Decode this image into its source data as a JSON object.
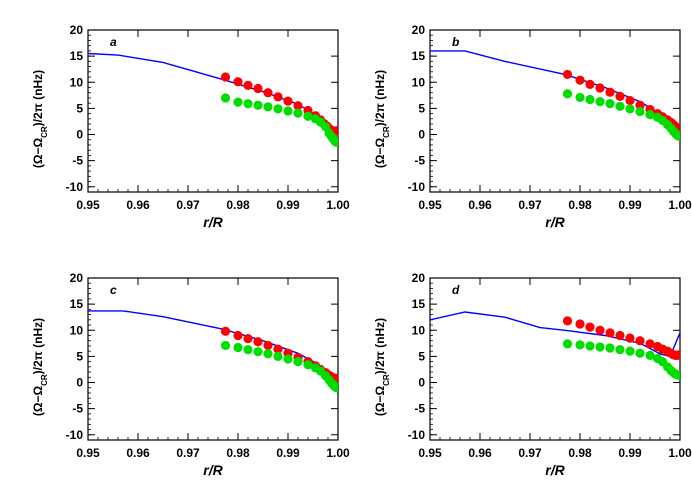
{
  "chart_data": [
    {
      "type": "scatter",
      "panel_label": "a",
      "xlabel": "r/R",
      "ylabel_parts": [
        "(Ω−Ω",
        "CR",
        ")/2π  (nHz)"
      ],
      "xlim": [
        0.95,
        1.0
      ],
      "ylim": [
        -11,
        20
      ],
      "xticks": [
        0.95,
        0.96,
        0.97,
        0.98,
        0.99,
        1.0
      ],
      "xtick_labels": [
        "0.95",
        "0.96",
        "0.97",
        "0.98",
        "0.99",
        "1.00"
      ],
      "yticks": [
        -10,
        -5,
        0,
        5,
        10,
        15,
        20
      ],
      "ytick_labels": [
        "-10",
        "-5",
        "0",
        "5",
        "10",
        "15",
        "20"
      ],
      "series": [
        {
          "name": "model",
          "kind": "line",
          "color": "#0000ff",
          "x": [
            0.95,
            0.956,
            0.965,
            0.977,
            0.985,
            0.992,
            0.996,
            0.998,
            0.9995
          ],
          "y": [
            15.5,
            15.2,
            13.8,
            10.5,
            8.2,
            5.8,
            3.5,
            1.8,
            0.6
          ]
        },
        {
          "name": "red data",
          "kind": "scatter",
          "color": "#ff0000",
          "x": [
            0.9775,
            0.98,
            0.982,
            0.984,
            0.986,
            0.988,
            0.99,
            0.992,
            0.994,
            0.9955,
            0.9965,
            0.9972,
            0.9978,
            0.9983,
            0.9987,
            0.9991,
            0.9994,
            0.9997
          ],
          "y": [
            11.0,
            10.1,
            9.4,
            8.8,
            8.0,
            7.2,
            6.4,
            5.5,
            4.6,
            3.6,
            2.8,
            2.1,
            1.6,
            1.1,
            0.8,
            0.6,
            0.6,
            0.7
          ]
        },
        {
          "name": "green data",
          "kind": "scatter",
          "color": "#00dd00",
          "x": [
            0.9775,
            0.98,
            0.982,
            0.984,
            0.986,
            0.988,
            0.99,
            0.992,
            0.994,
            0.9955,
            0.9965,
            0.9975,
            0.9982,
            0.9987,
            0.9991,
            0.9994,
            0.9997
          ],
          "y": [
            7.0,
            6.2,
            5.9,
            5.6,
            5.3,
            4.9,
            4.5,
            4.1,
            3.5,
            3.0,
            2.4,
            1.5,
            0.3,
            -0.4,
            -0.9,
            -1.3,
            -1.5
          ]
        }
      ]
    },
    {
      "type": "scatter",
      "panel_label": "b",
      "xlabel": "r/R",
      "ylabel_parts": [
        "(Ω−Ω",
        "CR",
        ")/2π  (nHz)"
      ],
      "xlim": [
        0.95,
        1.0
      ],
      "ylim": [
        -11,
        20
      ],
      "xticks": [
        0.95,
        0.96,
        0.97,
        0.98,
        0.99,
        1.0
      ],
      "xtick_labels": [
        "0.95",
        "0.96",
        "0.97",
        "0.98",
        "0.99",
        "1.00"
      ],
      "yticks": [
        -10,
        -5,
        0,
        5,
        10,
        15,
        20
      ],
      "ytick_labels": [
        "-10",
        "-5",
        "0",
        "5",
        "10",
        "15",
        "20"
      ],
      "series": [
        {
          "name": "model",
          "kind": "line",
          "color": "#0000ff",
          "x": [
            0.95,
            0.957,
            0.965,
            0.977,
            0.985,
            0.992,
            0.996,
            0.998,
            0.9995
          ],
          "y": [
            16.0,
            16.0,
            14.0,
            11.5,
            9.0,
            6.3,
            4.0,
            2.2,
            1.0
          ]
        },
        {
          "name": "red data",
          "kind": "scatter",
          "color": "#ff0000",
          "x": [
            0.9775,
            0.98,
            0.982,
            0.984,
            0.986,
            0.988,
            0.99,
            0.992,
            0.994,
            0.9955,
            0.9965,
            0.9975,
            0.9982,
            0.9987,
            0.9991,
            0.9994,
            0.9997
          ],
          "y": [
            11.5,
            10.4,
            9.6,
            8.9,
            8.1,
            7.3,
            6.5,
            5.6,
            4.8,
            4.0,
            3.4,
            2.8,
            2.3,
            1.9,
            1.5,
            1.2,
            1.0
          ]
        },
        {
          "name": "green data",
          "kind": "scatter",
          "color": "#00dd00",
          "x": [
            0.9775,
            0.98,
            0.982,
            0.984,
            0.986,
            0.988,
            0.99,
            0.992,
            0.994,
            0.9955,
            0.9965,
            0.9975,
            0.9982,
            0.9987,
            0.9991,
            0.9994,
            0.9997
          ],
          "y": [
            7.8,
            7.1,
            6.7,
            6.3,
            5.9,
            5.4,
            4.9,
            4.4,
            3.8,
            3.3,
            2.7,
            1.9,
            1.2,
            0.6,
            0.2,
            -0.1,
            -0.3
          ]
        }
      ]
    },
    {
      "type": "scatter",
      "panel_label": "c",
      "xlabel": "r/R",
      "ylabel_parts": [
        "(Ω−Ω",
        "CR",
        ")/2π  (nHz)"
      ],
      "xlim": [
        0.95,
        1.0
      ],
      "ylim": [
        -11,
        20
      ],
      "xticks": [
        0.95,
        0.96,
        0.97,
        0.98,
        0.99,
        1.0
      ],
      "xtick_labels": [
        "0.95",
        "0.96",
        "0.97",
        "0.98",
        "0.99",
        "1.00"
      ],
      "yticks": [
        -10,
        -5,
        0,
        5,
        10,
        15,
        20
      ],
      "ytick_labels": [
        "-10",
        "-5",
        "0",
        "5",
        "10",
        "15",
        "20"
      ],
      "series": [
        {
          "name": "model",
          "kind": "line",
          "color": "#0000ff",
          "x": [
            0.95,
            0.957,
            0.965,
            0.977,
            0.985,
            0.992,
            0.996,
            0.998,
            0.9995
          ],
          "y": [
            13.7,
            13.7,
            12.6,
            10.2,
            8.0,
            5.6,
            3.5,
            2.0,
            0.8
          ]
        },
        {
          "name": "red data",
          "kind": "scatter",
          "color": "#ff0000",
          "x": [
            0.9775,
            0.98,
            0.982,
            0.984,
            0.986,
            0.988,
            0.99,
            0.992,
            0.994,
            0.9955,
            0.9965,
            0.9975,
            0.9982,
            0.9987,
            0.9991,
            0.9994,
            0.9997
          ],
          "y": [
            9.8,
            9.0,
            8.4,
            7.8,
            7.1,
            6.4,
            5.6,
            4.8,
            4.0,
            3.2,
            2.5,
            1.9,
            1.4,
            1.1,
            0.9,
            0.8,
            0.8
          ]
        },
        {
          "name": "green data",
          "kind": "scatter",
          "color": "#00dd00",
          "x": [
            0.9775,
            0.98,
            0.982,
            0.984,
            0.986,
            0.988,
            0.99,
            0.992,
            0.994,
            0.9955,
            0.9965,
            0.9975,
            0.9982,
            0.9987,
            0.9991,
            0.9994,
            0.9997
          ],
          "y": [
            7.1,
            6.7,
            6.3,
            5.9,
            5.5,
            5.0,
            4.5,
            4.0,
            3.4,
            2.8,
            2.2,
            1.3,
            0.5,
            -0.1,
            -0.5,
            -0.8,
            -1.0
          ]
        }
      ]
    },
    {
      "type": "scatter",
      "panel_label": "d",
      "xlabel": "r/R",
      "ylabel_parts": [
        "(Ω−Ω",
        "CR",
        ")/2π  (nHz)"
      ],
      "xlim": [
        0.95,
        1.0
      ],
      "ylim": [
        -11,
        20
      ],
      "xticks": [
        0.95,
        0.96,
        0.97,
        0.98,
        0.99,
        1.0
      ],
      "xtick_labels": [
        "0.95",
        "0.96",
        "0.97",
        "0.98",
        "0.99",
        "1.00"
      ],
      "yticks": [
        -10,
        -5,
        0,
        5,
        10,
        15,
        20
      ],
      "ytick_labels": [
        "-10",
        "-5",
        "0",
        "5",
        "10",
        "15",
        "20"
      ],
      "series": [
        {
          "name": "model",
          "kind": "line",
          "color": "#0000ff",
          "x": [
            0.95,
            0.957,
            0.965,
            0.972,
            0.977,
            0.985,
            0.992,
            0.996,
            0.998,
            1.0
          ],
          "y": [
            12.0,
            13.5,
            12.5,
            10.5,
            10.0,
            9.0,
            7.5,
            5.5,
            5.0,
            9.5
          ]
        },
        {
          "name": "red data",
          "kind": "scatter",
          "color": "#ff0000",
          "x": [
            0.9775,
            0.98,
            0.982,
            0.984,
            0.986,
            0.988,
            0.99,
            0.992,
            0.994,
            0.9955,
            0.9965,
            0.9975,
            0.9982,
            0.9987,
            0.9991,
            0.9994,
            0.9997
          ],
          "y": [
            11.8,
            11.2,
            10.6,
            10.0,
            9.5,
            9.0,
            8.5,
            8.0,
            7.4,
            6.9,
            6.4,
            6.0,
            5.6,
            5.3,
            5.2,
            5.2,
            5.3
          ]
        },
        {
          "name": "green data",
          "kind": "scatter",
          "color": "#00dd00",
          "x": [
            0.9775,
            0.98,
            0.982,
            0.984,
            0.986,
            0.988,
            0.99,
            0.992,
            0.994,
            0.9955,
            0.9965,
            0.9975,
            0.9982,
            0.9987,
            0.9991,
            0.9994,
            0.9997
          ],
          "y": [
            7.4,
            7.2,
            7.0,
            6.8,
            6.6,
            6.3,
            6.0,
            5.6,
            5.2,
            4.6,
            4.0,
            3.0,
            2.3,
            1.9,
            1.6,
            1.5,
            1.4
          ]
        }
      ]
    }
  ]
}
